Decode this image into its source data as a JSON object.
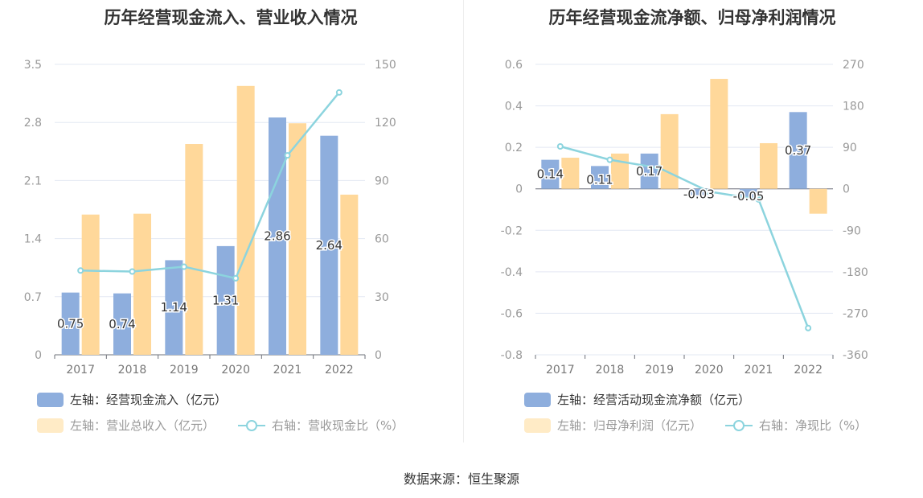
{
  "source": "数据来源：恒生聚源",
  "chart_data": [
    {
      "type": "bar",
      "title": "历年经营现金流入、营业收入情况",
      "categories": [
        "2017",
        "2018",
        "2019",
        "2020",
        "2021",
        "2022"
      ],
      "y_left": {
        "min": 0,
        "max": 3.5,
        "ticks": [
          "0",
          "0.7",
          "1.4",
          "2.1",
          "2.8",
          "3.5"
        ]
      },
      "y_right": {
        "min": 0,
        "max": 150,
        "ticks": [
          "0",
          "30",
          "60",
          "90",
          "120",
          "150"
        ]
      },
      "series": [
        {
          "name": "左轴：经营现金流入（亿元）",
          "kind": "bar",
          "axis": "left",
          "color": "#8eaedd",
          "values": [
            0.75,
            0.74,
            1.14,
            1.31,
            2.86,
            2.64
          ],
          "labels": [
            "0.75",
            "0.74",
            "1.14",
            "1.31",
            "2.86",
            "2.64"
          ]
        },
        {
          "name": "左轴：营业总收入（亿元）",
          "kind": "bar",
          "axis": "left",
          "color": "#ffd89a",
          "values": [
            1.69,
            1.7,
            2.54,
            3.24,
            2.79,
            1.93
          ]
        },
        {
          "name": "右轴：营收现金比（%）",
          "kind": "line",
          "axis": "right",
          "color": "#8cd4de",
          "values": [
            43.5,
            43.0,
            45.5,
            39.5,
            103.0,
            135.5
          ]
        }
      ],
      "legend": [
        {
          "text": "左轴：经营现金流入（亿元）",
          "style": "bar",
          "color": "#8eaedd",
          "dim": false
        },
        {
          "text": "左轴：营业总收入（亿元）",
          "style": "bar",
          "color": "#ffebc6",
          "dim": true
        },
        {
          "text": "右轴：营收现金比（%）",
          "style": "line",
          "color": "#8cd4de",
          "dim": true
        }
      ]
    },
    {
      "type": "bar",
      "title": "历年经营现金流净额、归母净利润情况",
      "categories": [
        "2017",
        "2018",
        "2019",
        "2020",
        "2021",
        "2022"
      ],
      "y_left": {
        "min": -0.8,
        "max": 0.6,
        "ticks": [
          "-0.8",
          "-0.6",
          "-0.4",
          "-0.2",
          "0",
          "0.2",
          "0.4",
          "0.6"
        ]
      },
      "y_right": {
        "min": -360,
        "max": 270,
        "ticks": [
          "-360",
          "-270",
          "-180",
          "-90",
          "0",
          "90",
          "180",
          "270"
        ]
      },
      "series": [
        {
          "name": "左轴：经营活动现金流净额（亿元）",
          "kind": "bar",
          "axis": "left",
          "color": "#8eaedd",
          "values": [
            0.14,
            0.11,
            0.17,
            -0.03,
            -0.05,
            0.37
          ],
          "labels": [
            "0.14",
            "0.11",
            "0.17",
            "-0.03",
            "-0.05",
            "0.37"
          ]
        },
        {
          "name": "左轴：归母净利润（亿元）",
          "kind": "bar",
          "axis": "left",
          "color": "#ffd89a",
          "values": [
            0.15,
            0.17,
            0.36,
            0.53,
            0.22,
            -0.12
          ]
        },
        {
          "name": "右轴：净现比（%）",
          "kind": "line",
          "axis": "right",
          "color": "#8cd4de",
          "values": [
            92,
            63,
            45,
            -6,
            -23,
            -302
          ]
        }
      ],
      "legend": [
        {
          "text": "左轴：经营活动现金流净额（亿元）",
          "style": "bar",
          "color": "#8eaedd",
          "dim": false
        },
        {
          "text": "左轴：归母净利润（亿元）",
          "style": "bar",
          "color": "#ffebc6",
          "dim": true
        },
        {
          "text": "右轴：净现比（%）",
          "style": "line",
          "color": "#8cd4de",
          "dim": true
        }
      ]
    }
  ]
}
